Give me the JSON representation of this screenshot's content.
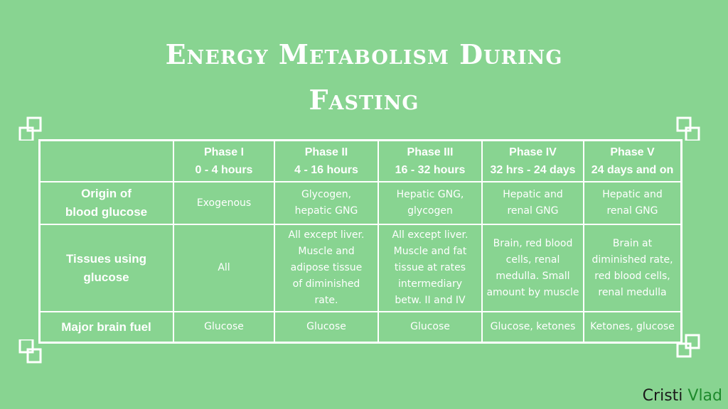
{
  "title": {
    "line1": "Energy Metabolism During",
    "line2": "Fasting"
  },
  "table": {
    "headers": [
      "",
      "Phase I\n0 - 4 hours",
      "Phase II\n4 - 16 hours",
      "Phase III\n16 - 32 hours",
      "Phase IV\n32 hrs - 24 days",
      "Phase V\n24 days and on"
    ],
    "rows": [
      {
        "label": "Origin of\nblood glucose",
        "cells": [
          "Exogenous",
          "Glycogen,\nhepatic GNG",
          "Hepatic GNG,\nglycogen",
          "Hepatic and\nrenal GNG",
          "Hepatic and\nrenal GNG"
        ]
      },
      {
        "label": "Tissues using\nglucose",
        "cells": [
          "All",
          "All except liver.\nMuscle and\nadipose tissue\nof diminished\nrate.",
          "All except liver.\nMuscle and fat\ntissue at rates\nintermediary\nbetw. II and IV",
          "Brain, red blood\ncells, renal\nmedulla. Small\namount by muscle",
          "Brain at\ndiminished rate,\nred blood cells,\nrenal medulla"
        ]
      },
      {
        "label": "Major brain fuel",
        "cells": [
          "Glucose",
          "Glucose",
          "Glucose",
          "Glucose, ketones",
          "Ketones, glucose"
        ]
      }
    ]
  },
  "brand": {
    "first": "Cristi",
    "second": "Vlad"
  },
  "colors": {
    "background": "#88d491",
    "text": "#ffffff",
    "brand_dark": "#1a1a1a",
    "brand_green": "#1e8a2c"
  }
}
